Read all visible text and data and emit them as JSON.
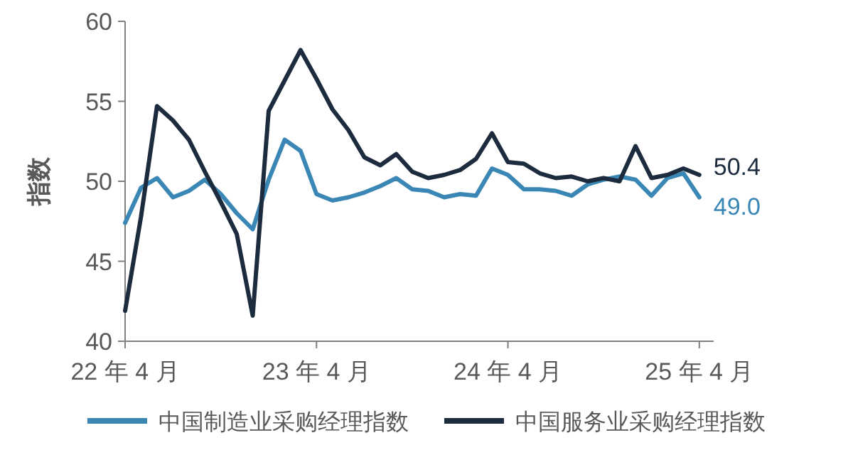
{
  "chart_data": {
    "type": "line",
    "ylabel": "指数",
    "categories": [
      "22 年 4 月",
      null,
      null,
      null,
      null,
      null,
      null,
      null,
      null,
      null,
      null,
      null,
      "23 年 4 月",
      null,
      null,
      null,
      null,
      null,
      null,
      null,
      null,
      null,
      null,
      null,
      "24 年 4 月",
      null,
      null,
      null,
      null,
      null,
      null,
      null,
      null,
      null,
      null,
      null,
      "25 年 4 月"
    ],
    "series": [
      {
        "name": "中国制造业采购经理指数",
        "color": "#3a87b5",
        "values": [
          47.4,
          49.6,
          50.2,
          49.0,
          49.4,
          50.1,
          49.2,
          48.0,
          47.0,
          50.1,
          52.6,
          51.9,
          49.2,
          48.8,
          49.0,
          49.3,
          49.7,
          50.2,
          49.5,
          49.4,
          49.0,
          49.2,
          49.1,
          50.8,
          50.4,
          49.5,
          49.5,
          49.4,
          49.1,
          49.8,
          50.1,
          50.3,
          50.1,
          49.1,
          50.2,
          50.5,
          49.0
        ],
        "value_labels": [
          null,
          null,
          null,
          null,
          null,
          null,
          null,
          null,
          null,
          null,
          null,
          null,
          null,
          null,
          null,
          null,
          null,
          null,
          null,
          null,
          null,
          null,
          null,
          null,
          null,
          null,
          null,
          null,
          null,
          null,
          null,
          null,
          null,
          null,
          null,
          null,
          "49.0"
        ]
      },
      {
        "name": "中国服务业采购经理指数",
        "color": "#1c2b3d",
        "values": [
          41.9,
          47.8,
          54.7,
          53.8,
          52.6,
          50.6,
          48.7,
          46.7,
          41.6,
          54.4,
          56.3,
          58.2,
          56.4,
          54.5,
          53.2,
          51.5,
          51.0,
          51.7,
          50.6,
          50.2,
          50.4,
          50.7,
          51.4,
          53.0,
          51.2,
          51.1,
          50.5,
          50.2,
          50.3,
          50.0,
          50.2,
          50.0,
          52.2,
          50.2,
          50.4,
          50.8,
          50.4
        ],
        "value_labels": [
          null,
          null,
          null,
          null,
          null,
          null,
          null,
          null,
          null,
          null,
          null,
          null,
          null,
          null,
          null,
          null,
          null,
          null,
          null,
          null,
          null,
          null,
          null,
          null,
          null,
          null,
          null,
          null,
          null,
          null,
          null,
          null,
          null,
          null,
          null,
          null,
          "50.4"
        ]
      }
    ],
    "ylim": [
      40,
      60
    ],
    "yticks": [
      40,
      45,
      50,
      55,
      60
    ],
    "grid": false,
    "legend": "bottom",
    "marker": "none",
    "line_style": "solid"
  }
}
